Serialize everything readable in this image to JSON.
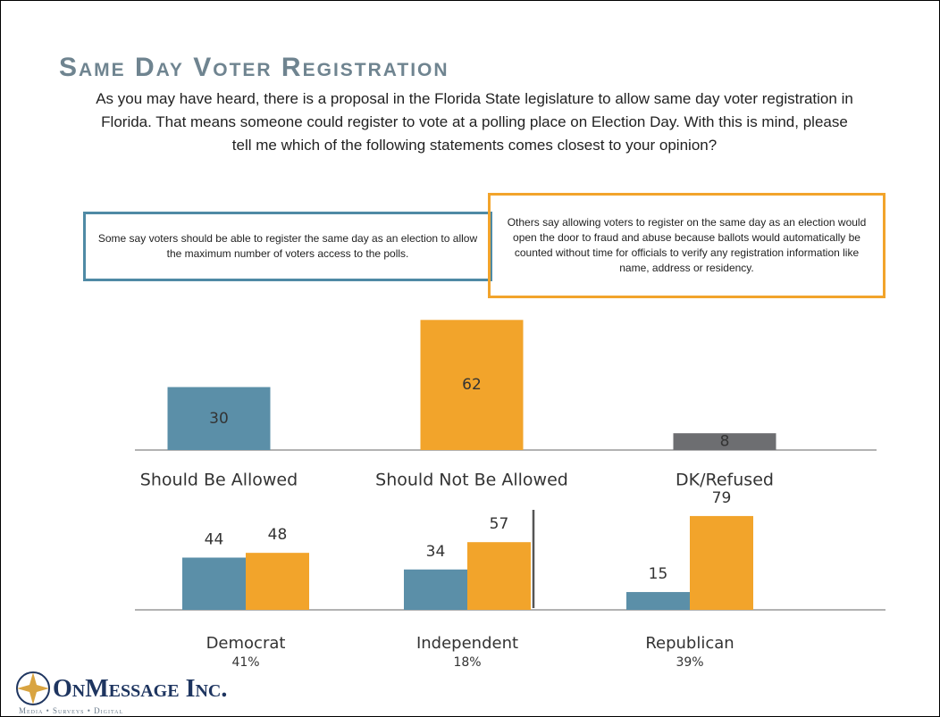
{
  "title": "Same Day Voter Registration",
  "question": "As you may have heard, there is a proposal in the Florida State legislature to allow same day voter registration in Florida. That means someone could register to vote at a polling place on Election Day.  With this is mind, please tell me which of the following statements comes closest to your opinion?",
  "box_left": "Some say voters should be able to register the same day as an election to allow the maximum number of voters access to the polls.",
  "box_right": "Others say allowing voters to register on the same day as an election would open the door to fraud and abuse because ballots would automatically be counted without time for officials to verify any registration information like name, address or residency.",
  "chart_data": [
    {
      "type": "bar",
      "categories": [
        "Should Be Allowed",
        "Should Not Be Allowed",
        "DK/Refused"
      ],
      "values": [
        30,
        62,
        8
      ],
      "colors": [
        "#5b8fa8",
        "#f2a42b",
        "#6d6e71"
      ]
    },
    {
      "type": "grouped_bar",
      "categories": [
        "Democrat",
        "Independent",
        "Republican"
      ],
      "category_notes": [
        "41%",
        "18%",
        "39%"
      ],
      "series": [
        {
          "color": "#5b8fa8",
          "values": [
            44,
            34,
            15
          ]
        },
        {
          "color": "#f2a42b",
          "values": [
            48,
            57,
            79
          ]
        }
      ]
    }
  ],
  "logo": {
    "name": "OnMessage Inc.",
    "tagline": "Media • Surveys • Digital"
  }
}
